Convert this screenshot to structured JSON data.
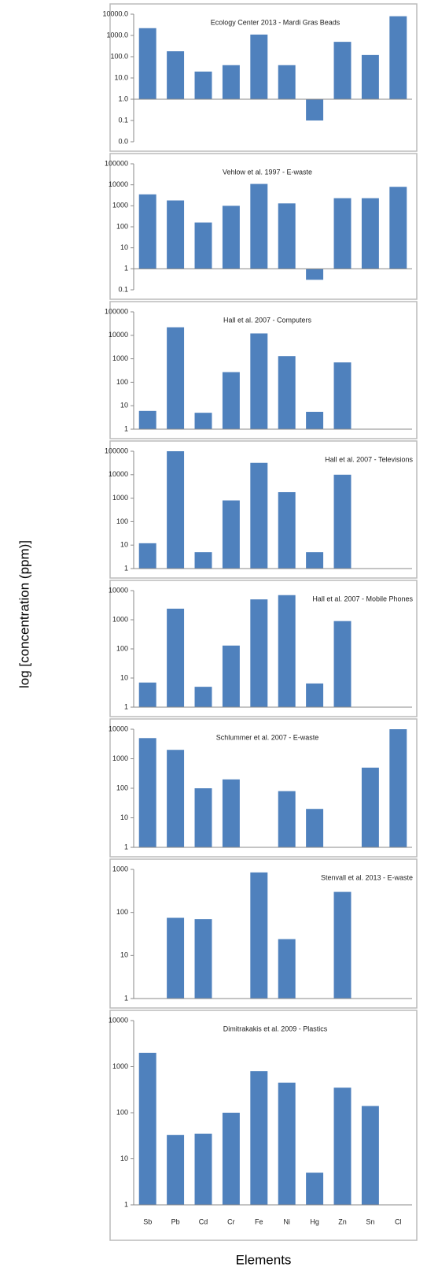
{
  "ylabel": "log [concentration (ppm)]",
  "xlabel": "Elements",
  "chart_data": [
    {
      "type": "bar",
      "title": "Ecology Center 2013 - Mardi Gras Beads",
      "log_scale": true,
      "color": "#4f81bd",
      "values": [
        2200,
        180,
        20,
        40,
        1100,
        40,
        0.1,
        500,
        120,
        8000
      ],
      "ylim": [
        0.01,
        10000
      ],
      "yticks": [
        {
          "value": 0.01,
          "label": "0.0"
        },
        {
          "value": 0.1,
          "label": "0.1"
        },
        {
          "value": 1,
          "label": "1.0"
        },
        {
          "value": 10,
          "label": "10.0"
        },
        {
          "value": 100,
          "label": "100.0"
        },
        {
          "value": 1000,
          "label": "1000.0"
        },
        {
          "value": 10000,
          "label": "10000.0"
        }
      ]
    },
    {
      "type": "bar",
      "title": "Vehlow et al. 1997 - E-waste",
      "log_scale": true,
      "color": "#4f81bd",
      "values": [
        3500,
        1800,
        160,
        1000,
        11000,
        1300,
        0.3,
        2300,
        2300,
        8000
      ],
      "ylim": [
        0.1,
        100000
      ],
      "yticks": [
        0.1,
        1,
        10,
        100,
        1000,
        10000,
        100000
      ]
    },
    {
      "type": "bar",
      "title": "Hall et al. 2007 - Computers",
      "log_scale": true,
      "color": "#4f81bd",
      "values": [
        6,
        22000,
        5,
        270,
        12000,
        1300,
        5.5,
        700,
        null,
        null
      ],
      "ylim": [
        1,
        100000
      ],
      "yticks": [
        1,
        10,
        100,
        1000,
        10000,
        100000
      ]
    },
    {
      "type": "bar",
      "title": "Hall et al. 2007 - Televisions",
      "log_scale": true,
      "color": "#4f81bd",
      "values": [
        12,
        100000,
        5,
        800,
        32000,
        1800,
        5,
        10000,
        null,
        null
      ],
      "ylim": [
        1,
        100000
      ],
      "yticks": [
        1,
        10,
        100,
        1000,
        10000,
        100000
      ]
    },
    {
      "type": "bar",
      "title": "Hall et al. 2007 - Mobile Phones",
      "log_scale": true,
      "color": "#4f81bd",
      "values": [
        7,
        2400,
        5,
        130,
        5000,
        7000,
        6.5,
        900,
        null,
        null
      ],
      "ylim": [
        1,
        10000
      ],
      "yticks": [
        1,
        10,
        100,
        1000,
        10000
      ]
    },
    {
      "type": "bar",
      "title": "Schlummer et al. 2007 - E-waste",
      "log_scale": true,
      "color": "#4f81bd",
      "values": [
        5000,
        2000,
        100,
        200,
        null,
        80,
        20,
        null,
        500,
        10000
      ],
      "ylim": [
        1,
        10000
      ],
      "yticks": [
        1,
        10,
        100,
        1000,
        10000
      ]
    },
    {
      "type": "bar",
      "title": "Stenvall et al. 2013 - E-waste",
      "log_scale": true,
      "color": "#4f81bd",
      "values": [
        null,
        75,
        70,
        null,
        850,
        24,
        null,
        300,
        null,
        null
      ],
      "ylim": [
        1,
        1000
      ],
      "yticks": [
        1,
        10,
        100,
        1000
      ]
    },
    {
      "type": "bar",
      "title": "Dimitrakakis et al. 2009 - Plastics",
      "log_scale": true,
      "color": "#4f81bd",
      "categories": [
        "Sb",
        "Pb",
        "Cd",
        "Cr",
        "Fe",
        "Ni",
        "Hg",
        "Zn",
        "Sn",
        "Cl"
      ],
      "values": [
        2000,
        33,
        35,
        100,
        800,
        450,
        5,
        350,
        140,
        null
      ],
      "ylim": [
        1,
        10000
      ],
      "yticks": [
        1,
        10,
        100,
        1000,
        10000
      ]
    }
  ]
}
